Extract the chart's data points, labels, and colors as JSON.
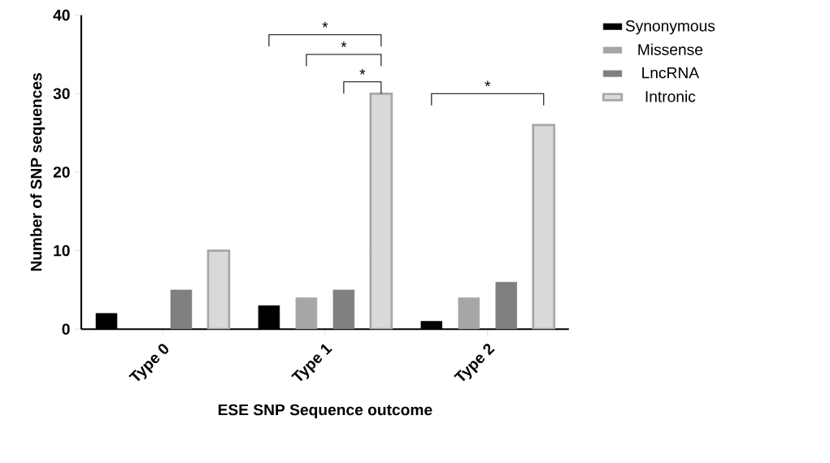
{
  "chart_data": {
    "type": "bar",
    "xlabel": "ESE SNP Sequence outcome",
    "ylabel": "Number of SNP sequences",
    "categories": [
      "Type 0",
      "Type 1",
      "Type 2"
    ],
    "series": [
      {
        "name": "Synonymous",
        "color": "#000000",
        "values": [
          2,
          3,
          1
        ]
      },
      {
        "name": "Missense",
        "color": "#a6a6a6",
        "values": [
          0,
          4,
          4
        ]
      },
      {
        "name": "LncRNA",
        "color": "#808080",
        "values": [
          5,
          5,
          6
        ]
      },
      {
        "name": "Intronic",
        "color": "#d9d9d9",
        "values": [
          10,
          30,
          26
        ]
      }
    ],
    "ylim": [
      0,
      40
    ],
    "yticks": [
      0,
      10,
      20,
      30,
      40
    ],
    "grid": false,
    "legend": "top right",
    "annotations": [
      "*",
      "*",
      "*",
      "*"
    ]
  }
}
